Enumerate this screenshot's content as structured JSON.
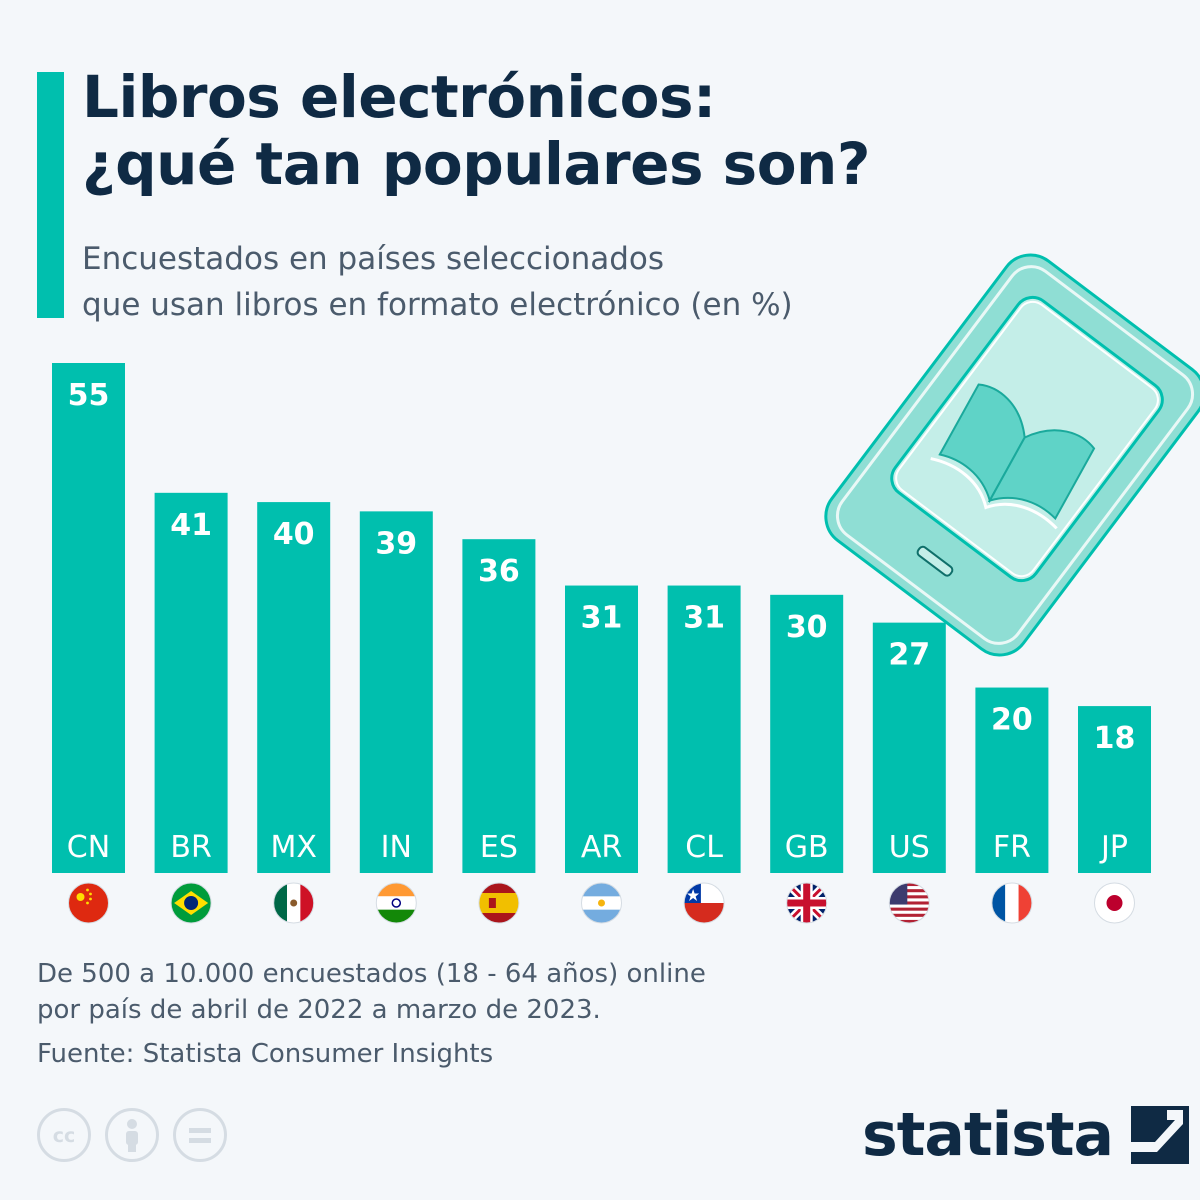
{
  "title_lines": [
    "Libros electrónicos:",
    "¿qué tan populares son?"
  ],
  "subtitle_lines": [
    "Encuestados en países seleccionados",
    "que usan libros en formato electrónico (en %)"
  ],
  "colors": {
    "accent": "#00bfae",
    "title": "#0f2a44",
    "text": "#4b5b6c",
    "device": "#8fded4"
  },
  "chart_data": {
    "type": "bar",
    "categories": [
      "CN",
      "BR",
      "MX",
      "IN",
      "ES",
      "AR",
      "CL",
      "GB",
      "US",
      "FR",
      "JP"
    ],
    "values": [
      55,
      41,
      40,
      39,
      36,
      31,
      31,
      30,
      27,
      20,
      18
    ],
    "data_labels": [
      "55",
      "41",
      "40",
      "39",
      "36",
      "31",
      "31",
      "30",
      "27",
      "20",
      "18"
    ],
    "category_icons": [
      "flag-cn-icon",
      "flag-br-icon",
      "flag-mx-icon",
      "flag-in-icon",
      "flag-es-icon",
      "flag-ar-icon",
      "flag-cl-icon",
      "flag-gb-icon",
      "flag-us-icon",
      "flag-fr-icon",
      "flag-jp-icon"
    ],
    "title": "Libros electrónicos: ¿qué tan populares son?",
    "subtitle": "Encuestados en países seleccionados que usan libros en formato electrónico (en %)",
    "xlabel": "",
    "ylabel": "",
    "ylim": [
      0,
      55
    ],
    "grid": false,
    "legend": "none"
  },
  "footer": {
    "note_lines": [
      "De 500 a 10.000 encuestados (18 - 64 años) online",
      "por país de abril de 2022 a marzo de 2023."
    ],
    "source": "Fuente: Statista Consumer Insights",
    "brand": "statista",
    "license_icons": [
      "cc-icon",
      "attribution-icon",
      "no-derivatives-icon"
    ]
  }
}
